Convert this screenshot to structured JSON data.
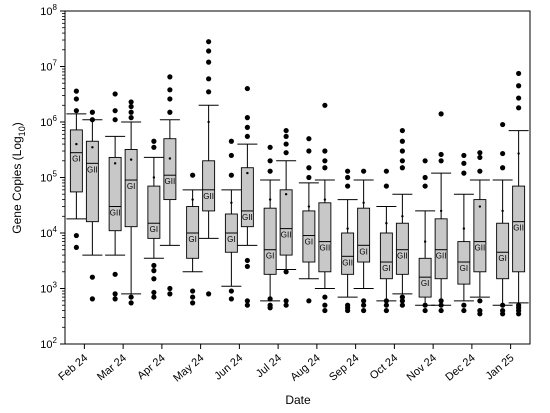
{
  "chart_data": {
    "type": "box",
    "title": "",
    "xlabel": "Date",
    "ylabel": "Gene Copies (Log10)",
    "ylabel_parts": {
      "base": "Gene Copies (Log",
      "sub": "10",
      "close": ")"
    },
    "yscale": "log",
    "ylim": [
      100,
      100000000
    ],
    "ytick_labels": [
      {
        "base": "10",
        "exp": "2"
      },
      {
        "base": "10",
        "exp": "3"
      },
      {
        "base": "10",
        "exp": "4"
      },
      {
        "base": "10",
        "exp": "5"
      },
      {
        "base": "10",
        "exp": "6"
      },
      {
        "base": "10",
        "exp": "7"
      },
      {
        "base": "10",
        "exp": "8"
      }
    ],
    "grid": false,
    "legend": "none",
    "box_color": "#c8c8c8",
    "categories": [
      "Feb 24",
      "Mar 24",
      "Apr 24",
      "May 24",
      "Jun 24",
      "Jul 24",
      "Aug 24",
      "Sep 24",
      "Oct 24",
      "Nov 24",
      "Dec 24",
      "Jan 25"
    ],
    "groups": [
      {
        "category": "Feb 24",
        "boxes": [
          {
            "label": "GI",
            "whisker_low": 18000,
            "q1": 55000,
            "median": 280000,
            "q3": 720000,
            "whisker_high": 1400000,
            "mean": 400000,
            "outliers": [
              3600000,
              2600000,
              1600000,
              9000,
              5500
            ]
          },
          {
            "label": "GII",
            "whisker_low": 4000,
            "q1": 16000,
            "median": 180000,
            "q3": 450000,
            "whisker_high": 1100000,
            "mean": 350000,
            "outliers": [
              1500000,
              1100000,
              650,
              1600
            ]
          }
        ]
      },
      {
        "category": "Mar 24",
        "boxes": [
          {
            "label": "GII",
            "whisker_low": 4000,
            "q1": 11000,
            "median": 30000,
            "q3": 230000,
            "whisker_high": 550000,
            "mean": 180000,
            "outliers": [
              3200000,
              1600000,
              1100000,
              1800,
              800,
              650
            ]
          },
          {
            "label": "GI",
            "whisker_low": 800,
            "q1": 13000,
            "median": 90000,
            "q3": 320000,
            "whisker_high": 1000000,
            "mean": 210000,
            "outliers": [
              2300000,
              1900000,
              1500000,
              1200000,
              700,
              550
            ]
          }
        ]
      },
      {
        "category": "Apr 24",
        "boxes": [
          {
            "label": "GI",
            "whisker_low": 3500,
            "q1": 8000,
            "median": 15000,
            "q3": 70000,
            "whisker_high": 230000,
            "mean": 100000,
            "outliers": [
              450000,
              350000,
              2600,
              2100,
              1500,
              850,
              700
            ]
          },
          {
            "label": "GII",
            "whisker_low": 6000,
            "q1": 40000,
            "median": 110000,
            "q3": 500000,
            "whisker_high": 1100000,
            "mean": 220000,
            "outliers": [
              6500000,
              3800000,
              2600000,
              1500000,
              1000,
              800
            ]
          }
        ]
      },
      {
        "category": "May 24",
        "boxes": [
          {
            "label": "GI",
            "whisker_low": 2000,
            "q1": 3500,
            "median": 10000,
            "q3": 30000,
            "whisker_high": 60000,
            "mean": 40000,
            "outliers": [
              110000,
              900,
              700,
              550
            ]
          },
          {
            "label": "GII",
            "whisker_low": 8000,
            "q1": 25000,
            "median": 60000,
            "q3": 200000,
            "whisker_high": 2000000,
            "mean": 1000000,
            "outliers": [
              28000000,
              19000000,
              12000000,
              6000000,
              3500000,
              800
            ]
          }
        ]
      },
      {
        "category": "Jun 24",
        "boxes": [
          {
            "label": "GI",
            "whisker_low": 1100,
            "q1": 4500,
            "median": 10000,
            "q3": 22000,
            "whisker_high": 60000,
            "mean": 35000,
            "outliers": [
              450000,
              250000,
              110000,
              900,
              650
            ]
          },
          {
            "label": "GII",
            "whisker_low": 6000,
            "q1": 13000,
            "median": 25000,
            "q3": 150000,
            "whisker_high": 400000,
            "mean": 120000,
            "outliers": [
              4000000,
              1200000,
              800000,
              550000,
              3200,
              2500,
              600,
              500
            ]
          }
        ]
      },
      {
        "category": "Jul 24",
        "boxes": [
          {
            "label": "GI",
            "whisker_low": 600,
            "q1": 1800,
            "median": 5000,
            "q3": 28000,
            "whisker_high": 90000,
            "mean": 40000,
            "outliers": [
              350000,
              200000,
              130000,
              650,
              500,
              450
            ]
          },
          {
            "label": "GII",
            "whisker_low": 2200,
            "q1": 4000,
            "median": 12000,
            "q3": 60000,
            "whisker_high": 200000,
            "mean": 50000,
            "outliers": [
              700000,
              550000,
              400000,
              280000,
              2000,
              600,
              500
            ]
          }
        ]
      },
      {
        "category": "Aug 24",
        "boxes": [
          {
            "label": "GI",
            "whisker_low": 1500,
            "q1": 3000,
            "median": 9000,
            "q3": 25000,
            "whisker_high": 80000,
            "mean": 30000,
            "outliers": [
              500000,
              300000,
              150000,
              100000,
              600
            ]
          },
          {
            "label": "GII",
            "whisker_low": 1000,
            "q1": 2000,
            "median": 7000,
            "q3": 35000,
            "whisker_high": 90000,
            "mean": 40000,
            "outliers": [
              2000000,
              300000,
              200000,
              150000,
              700,
              500,
              400
            ]
          }
        ]
      },
      {
        "category": "Sep 24",
        "boxes": [
          {
            "label": "GII",
            "whisker_low": 700,
            "q1": 1800,
            "median": 3800,
            "q3": 10000,
            "whisker_high": 40000,
            "mean": 12000,
            "outliers": [
              130000,
              100000,
              70000,
              500,
              450,
              400
            ]
          },
          {
            "label": "GI",
            "whisker_low": 1000,
            "q1": 3000,
            "median": 6000,
            "q3": 28000,
            "whisker_high": 90000,
            "mean": 35000,
            "outliers": [
              130000,
              600,
              500,
              400
            ]
          }
        ]
      },
      {
        "category": "Oct 24",
        "boxes": [
          {
            "label": "GI",
            "whisker_low": 600,
            "q1": 1500,
            "median": 3000,
            "q3": 10000,
            "whisker_high": 30000,
            "mean": 15000,
            "outliers": [
              130000,
              70000,
              600,
              500,
              400
            ]
          },
          {
            "label": "GII",
            "whisker_low": 800,
            "q1": 1800,
            "median": 5000,
            "q3": 15000,
            "whisker_high": 50000,
            "mean": 20000,
            "outliers": [
              700000,
              450000,
              300000,
              200000,
              150000,
              700,
              600,
              500
            ]
          }
        ]
      },
      {
        "category": "Nov 24",
        "boxes": [
          {
            "label": "GI",
            "whisker_low": 500,
            "q1": 700,
            "median": 1600,
            "q3": 3500,
            "whisker_high": 25000,
            "mean": 7000,
            "outliers": [
              200000,
              100000,
              70000,
              500,
              400
            ]
          },
          {
            "label": "GII",
            "whisker_low": 500,
            "q1": 1500,
            "median": 5000,
            "q3": 18000,
            "whisker_high": 120000,
            "mean": 25000,
            "outliers": [
              1400000,
              260000,
              200000,
              600,
              500,
              400
            ]
          }
        ]
      },
      {
        "category": "Dec 24",
        "boxes": [
          {
            "label": "GI",
            "whisker_low": 600,
            "q1": 1200,
            "median": 3000,
            "q3": 7000,
            "whisker_high": 50000,
            "mean": 12000,
            "outliers": [
              250000,
              180000,
              120000,
              500,
              400
            ]
          },
          {
            "label": "GII",
            "whisker_low": 700,
            "q1": 2000,
            "median": 7000,
            "q3": 40000,
            "whisker_high": 90000,
            "mean": 30000,
            "outliers": [
              280000,
              230000,
              130000,
              600,
              400,
              350
            ]
          }
        ]
      },
      {
        "category": "Jan 25",
        "boxes": [
          {
            "label": "GI",
            "whisker_low": 500,
            "q1": 1500,
            "median": 4500,
            "q3": 15000,
            "whisker_high": 90000,
            "mean": 25000,
            "outliers": [
              900000,
              270000,
              150000,
              500,
              400,
              350
            ]
          },
          {
            "label": "GII",
            "whisker_low": 550,
            "q1": 2000,
            "median": 16000,
            "q3": 70000,
            "whisker_high": 700000,
            "mean": 270000,
            "outliers": [
              7500000,
              4500000,
              2700000,
              1800000,
              500,
              450,
              400,
              350
            ]
          }
        ]
      }
    ]
  }
}
